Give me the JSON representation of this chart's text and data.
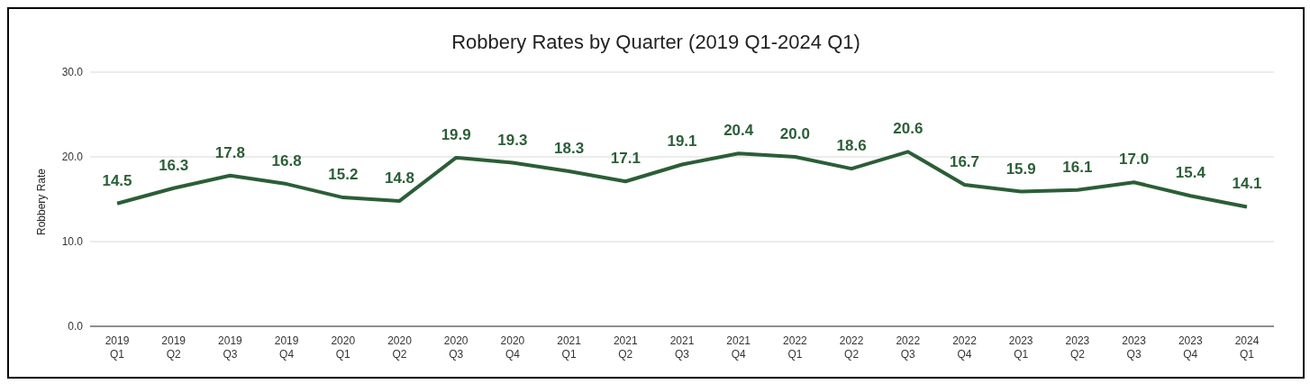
{
  "chart_data": {
    "type": "line",
    "title": "Robbery Rates by Quarter (2019 Q1-2024 Q1)",
    "ylabel": "Robbery Rate",
    "categories": [
      "2019 Q1",
      "2019 Q2",
      "2019 Q3",
      "2019 Q4",
      "2020 Q1",
      "2020 Q2",
      "2020 Q3",
      "2020 Q4",
      "2021 Q1",
      "2021 Q2",
      "2021 Q3",
      "2021 Q4",
      "2022 Q1",
      "2022 Q2",
      "2022 Q3",
      "2022 Q4",
      "2023 Q1",
      "2023 Q2",
      "2023 Q3",
      "2023 Q4",
      "2024 Q1"
    ],
    "series": [
      {
        "color": "#2b5e37",
        "values": [
          14.5,
          16.3,
          17.8,
          16.8,
          15.2,
          14.8,
          19.9,
          19.3,
          18.3,
          17.1,
          19.1,
          20.4,
          20.0,
          18.6,
          20.6,
          16.7,
          15.9,
          16.1,
          17.0,
          15.4,
          14.1
        ],
        "value_labels": [
          "14.5",
          "16.3",
          "17.8",
          "16.8",
          "15.2",
          "14.8",
          "19.9",
          "19.3",
          "18.3",
          "17.1",
          "19.1",
          "20.4",
          "20.0",
          "18.6",
          "20.6",
          "16.7",
          "15.9",
          "16.1",
          "17.0",
          "15.4",
          "14.1"
        ]
      }
    ],
    "ylim": [
      0,
      30
    ],
    "yticks": [
      {
        "value": 0,
        "label": "0.0"
      },
      {
        "value": 10,
        "label": "10.0"
      },
      {
        "value": 20,
        "label": "20.0"
      },
      {
        "value": 30,
        "label": "30.0"
      }
    ],
    "grid": "y",
    "marker": "none",
    "line_style": "solid"
  }
}
